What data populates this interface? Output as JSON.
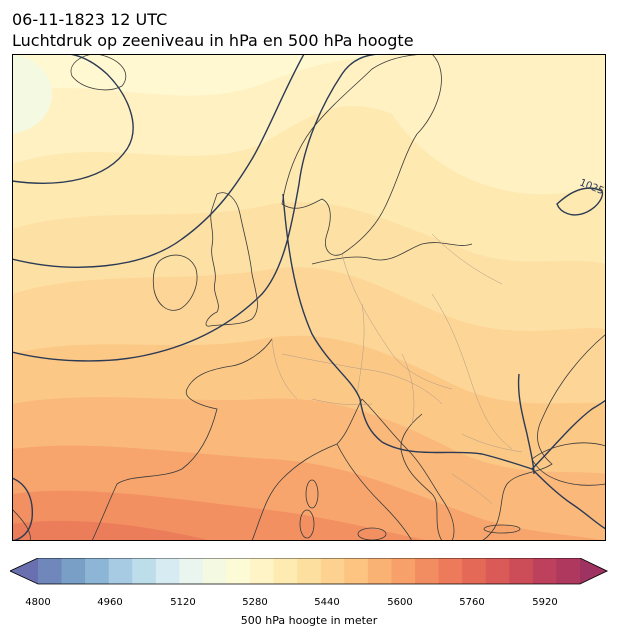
{
  "title": {
    "line1": "06-11-1823 12 UTC",
    "line2": "Luchtdruk op zeeniveau in hPa en 500 hPa hoogte"
  },
  "map": {
    "region": "Europe",
    "fill_variable": "500 hPa hoogte",
    "contour_variable": "luchtdruk op zeeniveau",
    "isobar_label": "1025",
    "isobar_color": "#2b3a55",
    "coast_color": "#3a3a3a",
    "border_color": "#b09a86"
  },
  "colorbar": {
    "label": "500 hPa hoogte in meter",
    "ticks": [
      "4800",
      "4960",
      "5120",
      "5280",
      "5440",
      "5600",
      "5760",
      "5920"
    ],
    "range": [
      4800,
      6000
    ],
    "step": 40,
    "colors": [
      "#6a6fb0",
      "#7087bb",
      "#7a9fc7",
      "#8db6d6",
      "#a6cbe3",
      "#bdddeb",
      "#d6ecf2",
      "#e9f5ee",
      "#f4f9e2",
      "#fdfbd6",
      "#fff4c5",
      "#feebb2",
      "#fde0a0",
      "#fdd290",
      "#fcc381",
      "#fab274",
      "#f7a06a",
      "#f28d62",
      "#ec7a5b",
      "#e46a57",
      "#d95a56",
      "#cc4c58",
      "#bd405c",
      "#af385f",
      "#9e3260"
    ]
  }
}
